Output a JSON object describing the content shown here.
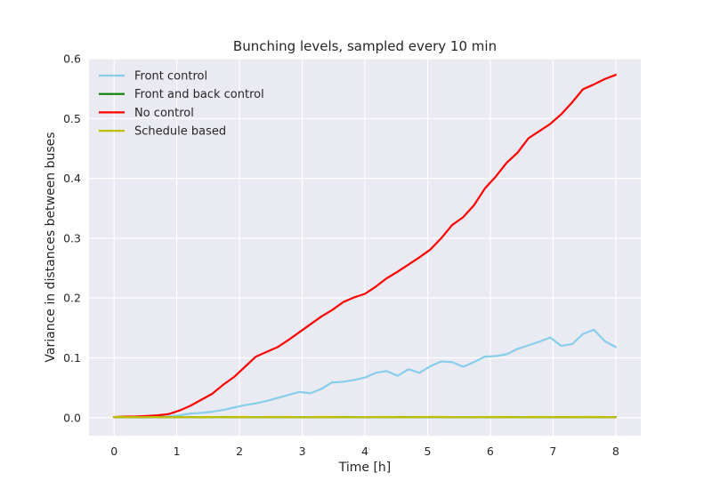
{
  "chart_data": {
    "type": "line",
    "title": "Bunching levels, sampled every 10 min",
    "xlabel": "Time [h]",
    "ylabel": "Variance in distances between buses",
    "xlim": [
      -0.4,
      8.4
    ],
    "ylim": [
      -0.03,
      0.6
    ],
    "xticks": [
      0,
      1,
      2,
      3,
      4,
      5,
      6,
      7,
      8
    ],
    "xtick_labels": [
      "0",
      "1",
      "2",
      "3",
      "4",
      "5",
      "6",
      "7",
      "8"
    ],
    "yticks": [
      0.0,
      0.1,
      0.2,
      0.3,
      0.4,
      0.5,
      0.6
    ],
    "ytick_labels": [
      "0.0",
      "0.1",
      "0.2",
      "0.3",
      "0.4",
      "0.5",
      "0.6"
    ],
    "grid": true,
    "legend_position": "top-left",
    "series": [
      {
        "name": "Front control",
        "color": "#87ceeb",
        "values": [
          0.001,
          0.001,
          0.001,
          0.001,
          0.002,
          0.002,
          0.004,
          0.007,
          0.008,
          0.01,
          0.013,
          0.017,
          0.021,
          0.024,
          0.028,
          0.033,
          0.038,
          0.043,
          0.041,
          0.048,
          0.059,
          0.06,
          0.063,
          0.067,
          0.075,
          0.078,
          0.07,
          0.081,
          0.075,
          0.086,
          0.094,
          0.093,
          0.085,
          0.093,
          0.102,
          0.103,
          0.106,
          0.115,
          0.121,
          0.127,
          0.134,
          0.12,
          0.123,
          0.14,
          0.147,
          0.128,
          0.118
        ]
      },
      {
        "name": "Front and back control",
        "color": "#008000",
        "values": [
          0.001,
          0.001,
          0.001,
          0.001,
          0.001,
          0.001,
          0.001,
          0.001,
          0.001,
          0.001,
          0.001,
          0.001,
          0.001,
          0.001,
          0.001,
          0.001,
          0.001,
          0.001,
          0.001,
          0.001,
          0.001,
          0.001,
          0.001,
          0.001,
          0.001,
          0.001,
          0.001,
          0.001,
          0.001,
          0.001,
          0.001,
          0.001,
          0.001,
          0.001,
          0.001,
          0.001,
          0.001,
          0.001,
          0.001,
          0.001,
          0.001,
          0.001,
          0.001,
          0.001,
          0.001,
          0.001,
          0.001
        ]
      },
      {
        "name": "No control",
        "color": "#ff0000",
        "values": [
          0.001,
          0.002,
          0.002,
          0.003,
          0.004,
          0.006,
          0.012,
          0.02,
          0.03,
          0.04,
          0.055,
          0.068,
          0.085,
          0.102,
          0.11,
          0.118,
          0.13,
          0.143,
          0.156,
          0.169,
          0.18,
          0.193,
          0.201,
          0.207,
          0.219,
          0.233,
          0.244,
          0.256,
          0.268,
          0.281,
          0.3,
          0.322,
          0.335,
          0.355,
          0.383,
          0.403,
          0.426,
          0.443,
          0.467,
          0.479,
          0.491,
          0.507,
          0.527,
          0.549,
          0.557,
          0.566,
          0.573
        ]
      },
      {
        "name": "Schedule based",
        "color": "#bfbf00",
        "values": [
          0.001,
          0.0012,
          0.0009,
          0.0011,
          0.001,
          0.0008,
          0.0012,
          0.0009,
          0.001,
          0.0011,
          0.0009,
          0.001,
          0.0012,
          0.0008,
          0.001,
          0.0013,
          0.001,
          0.0008,
          0.001,
          0.0012,
          0.001,
          0.0009,
          0.0008,
          0.001,
          0.0011,
          0.0012,
          0.0009,
          0.0008,
          0.0011,
          0.0013,
          0.0012,
          0.001,
          0.0008,
          0.001,
          0.0011,
          0.0012,
          0.0009,
          0.0008,
          0.001,
          0.0012,
          0.0011,
          0.0009,
          0.001,
          0.0012,
          0.0013,
          0.001,
          0.0008
        ]
      }
    ]
  }
}
